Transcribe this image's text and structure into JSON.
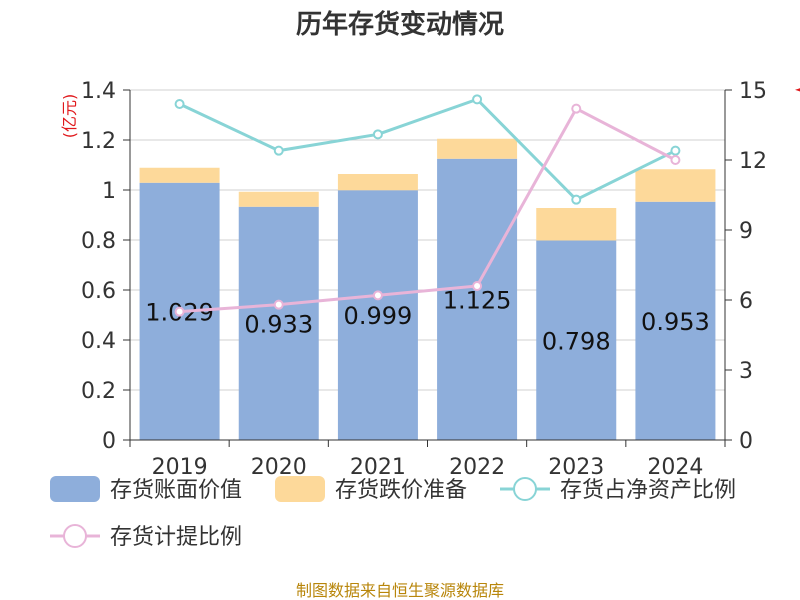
{
  "title": "历年存货变动情况",
  "source": "制图数据来自恒生聚源数据库",
  "chart_data": {
    "type": "bar",
    "stacked": true,
    "title": "历年存货变动情况",
    "categories": [
      "2019",
      "2020",
      "2021",
      "2022",
      "2023",
      "2024"
    ],
    "ylabel_left": "(亿元)",
    "ylim_left": [
      0,
      1.4
    ],
    "yticks_left": [
      "0",
      "0.2",
      "0.4",
      "0.6",
      "0.8",
      "1",
      "1.2",
      "1.4"
    ],
    "ylim_right": [
      0,
      15
    ],
    "yticks_right": [
      "0",
      "3",
      "6",
      "9",
      "12",
      "15"
    ],
    "grid": true,
    "legend_position": "bottom",
    "series": [
      {
        "name": "存货账面价值",
        "kind": "bar",
        "axis": "left",
        "color": "#8eaedb",
        "values": [
          1.029,
          0.933,
          0.999,
          1.125,
          0.798,
          0.953
        ],
        "labels": [
          "1.029",
          "0.933",
          "0.999",
          "1.125",
          "0.798",
          "0.953"
        ]
      },
      {
        "name": "存货跌价准备",
        "kind": "bar",
        "axis": "left",
        "color": "#fdd99a",
        "values": [
          0.06,
          0.06,
          0.065,
          0.08,
          0.13,
          0.13
        ]
      },
      {
        "name": "存货占净资产比例",
        "kind": "line",
        "axis": "right",
        "color": "#88d4d6",
        "values": [
          14.4,
          12.4,
          13.1,
          14.6,
          10.3,
          12.4
        ]
      },
      {
        "name": "存货计提比例",
        "kind": "line",
        "axis": "right",
        "color": "#e8b4d8",
        "values": [
          5.5,
          5.8,
          6.2,
          6.6,
          14.2,
          12.0
        ]
      }
    ]
  }
}
